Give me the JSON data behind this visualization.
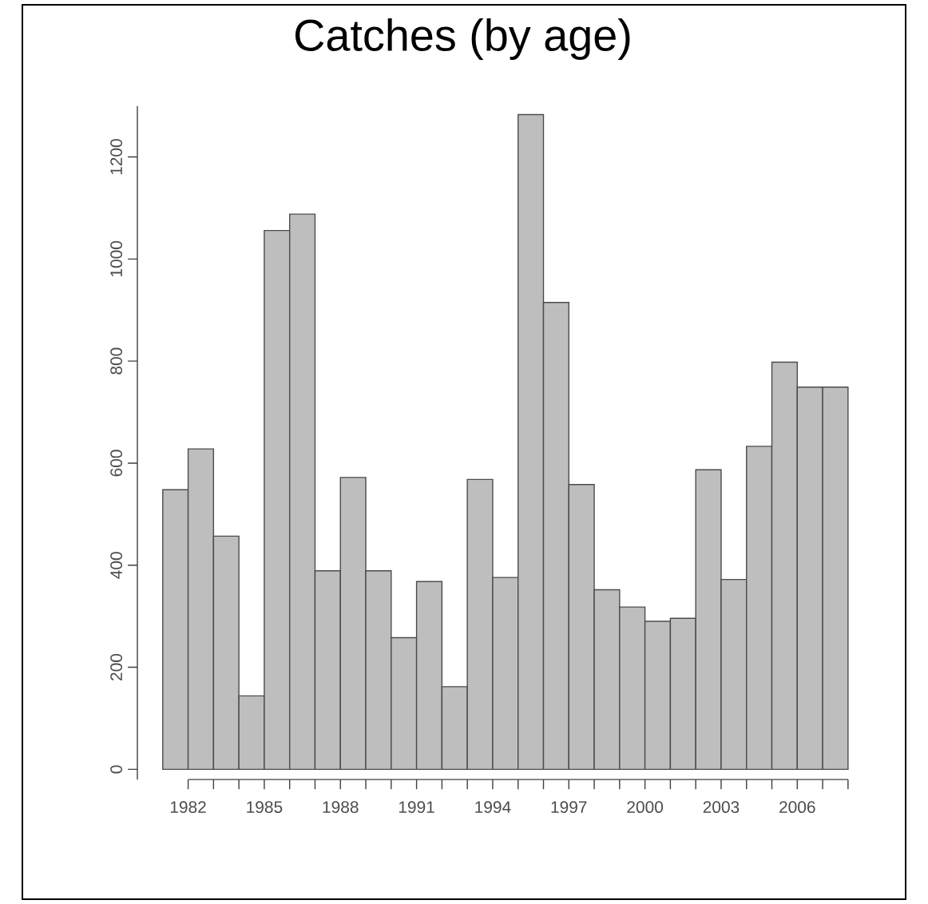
{
  "chart_data": {
    "type": "histogram",
    "title": "Catches (by age)",
    "bins": [
      1981,
      1982,
      1983,
      1984,
      1985,
      1986,
      1987,
      1988,
      1989,
      1990,
      1991,
      1992,
      1993,
      1994,
      1995,
      1996,
      1997,
      1998,
      1999,
      2000,
      2001,
      2002,
      2003,
      2004,
      2005,
      2006,
      2007,
      2008
    ],
    "values": [
      548,
      628,
      457,
      144,
      1056,
      1088,
      389,
      572,
      389,
      258,
      368,
      162,
      568,
      376,
      1283,
      915,
      558,
      352,
      318,
      290,
      296,
      587,
      372,
      633,
      798,
      749,
      749
    ],
    "color": "#bebebe",
    "xlim": [
      1980,
      2008
    ],
    "ylim": [
      -20,
      1300
    ],
    "xticks": [
      1982,
      {
        "value": 1983,
        "label": null
      },
      {
        "value": 1984,
        "label": null
      },
      1985,
      {
        "value": 1986,
        "label": null
      },
      {
        "value": 1987,
        "label": null
      },
      1988,
      {
        "value": 1989,
        "label": null
      },
      {
        "value": 1990,
        "label": null
      },
      1991,
      {
        "value": 1992,
        "label": null
      },
      {
        "value": 1993,
        "label": null
      },
      1994,
      {
        "value": 1995,
        "label": null
      },
      {
        "value": 1996,
        "label": null
      },
      1997,
      {
        "value": 1998,
        "label": null
      },
      {
        "value": 1999,
        "label": null
      },
      2000,
      {
        "value": 2001,
        "label": null
      },
      {
        "value": 2002,
        "label": null
      },
      2003,
      {
        "value": 2004,
        "label": null
      },
      {
        "value": 2005,
        "label": null
      },
      2006,
      {
        "value": 2007,
        "label": null
      },
      {
        "value": 2008,
        "label": null
      }
    ],
    "yticks": [
      0,
      200,
      400,
      600,
      800,
      1000,
      1200
    ]
  }
}
